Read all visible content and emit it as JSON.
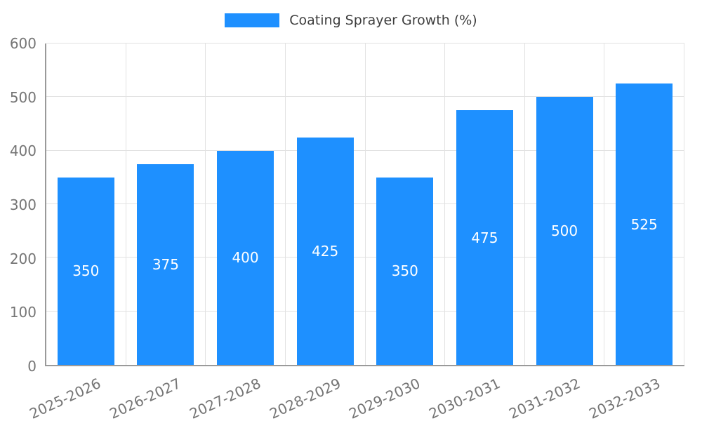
{
  "legend": {
    "position": "top"
  },
  "chart_data": {
    "type": "bar",
    "title": "Coating Sprayer Growth (%)",
    "categories": [
      "2025-2026",
      "2026-2027",
      "2027-2028",
      "2028-2029",
      "2029-2030",
      "2030-2031",
      "2031-2032",
      "2032-2033"
    ],
    "values": [
      350,
      375,
      400,
      425,
      350,
      475,
      500,
      525
    ],
    "xlabel": "",
    "ylabel": "",
    "ylim": [
      0,
      600
    ],
    "yticks": [
      0,
      100,
      200,
      300,
      400,
      500,
      600
    ],
    "grid": true,
    "legend_position": "top",
    "colors": {
      "bar": "#1E90FF",
      "value_label": "#ffffff",
      "tick_label": "#757575",
      "axis_line": "#9a9a9a",
      "gridline": "#e2e2e2",
      "title_text": "#3d3d3d",
      "background": "#ffffff"
    }
  }
}
